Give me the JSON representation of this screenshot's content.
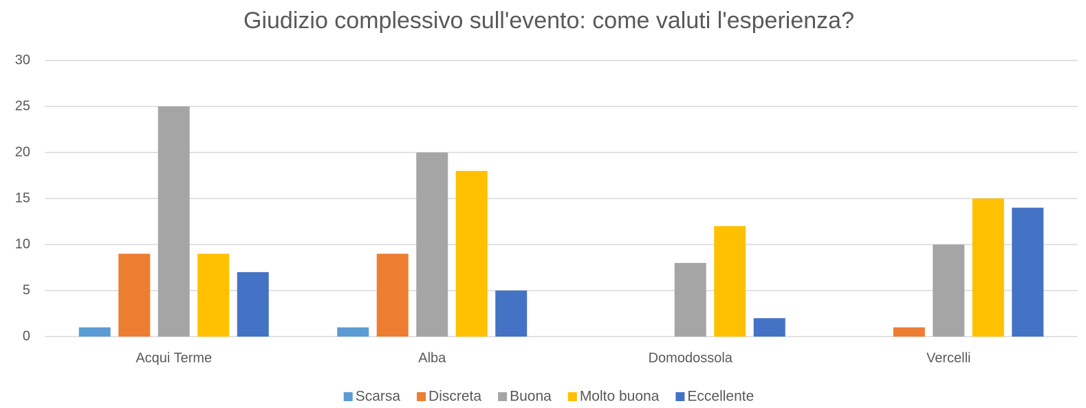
{
  "chart_data": {
    "type": "bar",
    "title": "Giudizio complessivo sull'evento: come valuti l'esperienza?",
    "categories": [
      "Acqui Terme",
      "Alba",
      "Domodossola",
      "Vercelli"
    ],
    "series": [
      {
        "name": "Scarsa",
        "color": "#5b9bd5",
        "values": [
          1,
          1,
          0,
          0
        ]
      },
      {
        "name": "Discreta",
        "color": "#ed7d31",
        "values": [
          9,
          9,
          0,
          1
        ]
      },
      {
        "name": "Buona",
        "color": "#a5a5a5",
        "values": [
          25,
          20,
          8,
          10
        ]
      },
      {
        "name": "Molto buona",
        "color": "#ffc000",
        "values": [
          9,
          18,
          12,
          15
        ]
      },
      {
        "name": "Eccellente",
        "color": "#4472c4",
        "values": [
          7,
          5,
          2,
          14
        ]
      }
    ],
    "ylim": [
      0,
      30
    ],
    "yticks": [
      0,
      5,
      10,
      15,
      20,
      25,
      30
    ],
    "grid": true,
    "legend": "bottom"
  }
}
